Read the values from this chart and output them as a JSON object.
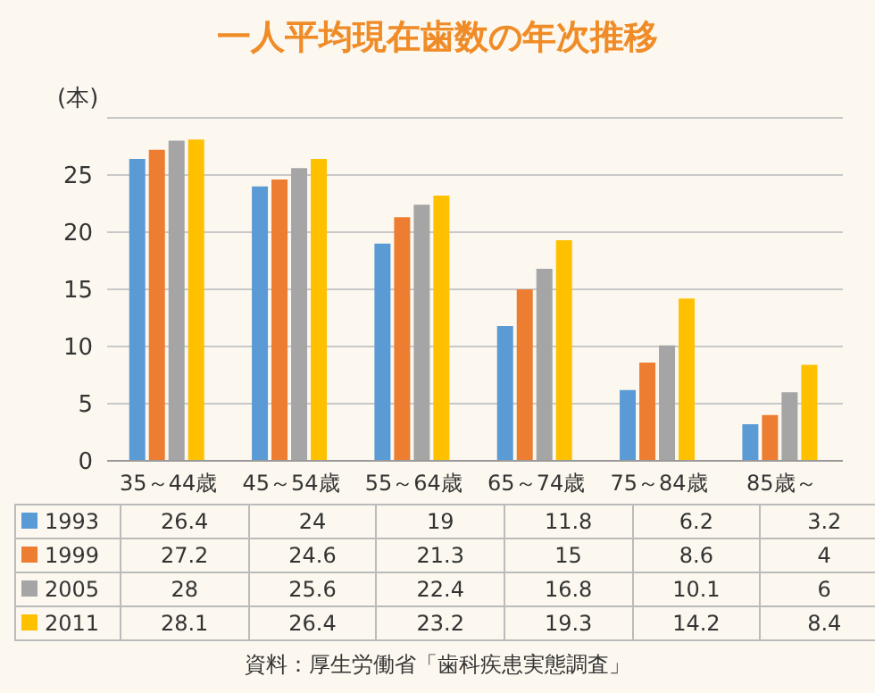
{
  "chart_data": {
    "type": "bar",
    "title": "一人平均現在歯数の年次推移",
    "ylabel": "(本)",
    "categories": [
      "35～44歳",
      "45～54歳",
      "55～64歳",
      "65～74歳",
      "75～84歳",
      "85歳～"
    ],
    "series": [
      {
        "name": "1993",
        "color": "#5b9bd5",
        "values": [
          26.4,
          24,
          19,
          11.8,
          6.2,
          3.2
        ]
      },
      {
        "name": "1999",
        "color": "#ed7d31",
        "values": [
          27.2,
          24.6,
          21.3,
          15,
          8.6,
          4
        ]
      },
      {
        "name": "2005",
        "color": "#a5a5a5",
        "values": [
          28,
          25.6,
          22.4,
          16.8,
          10.1,
          6
        ]
      },
      {
        "name": "2011",
        "color": "#ffc000",
        "values": [
          28.1,
          26.4,
          23.2,
          19.3,
          14.2,
          8.4
        ]
      }
    ],
    "ylim": [
      0,
      30
    ],
    "yticks": [
      0,
      5,
      10,
      15,
      20,
      25
    ],
    "grid": "y",
    "legend": "bottom left",
    "data_labels": true,
    "annotations": [
      "資料：厚生労働省「歯科疾患実態調査」"
    ]
  }
}
